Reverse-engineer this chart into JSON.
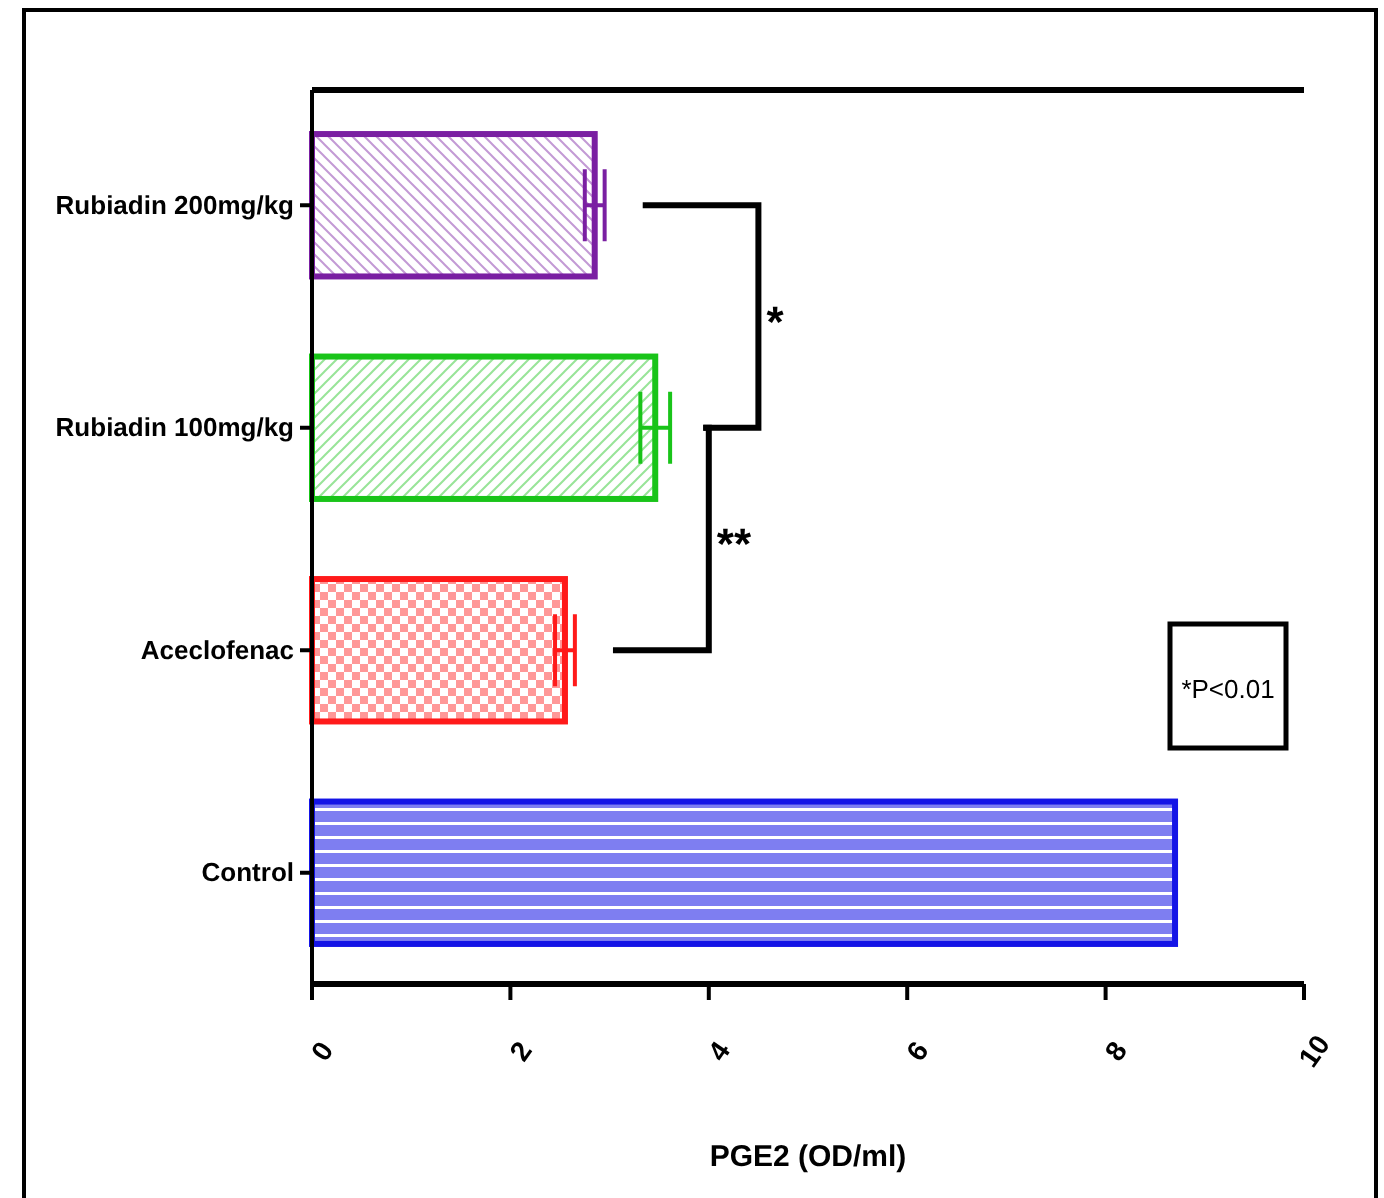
{
  "chart_data": {
    "type": "bar",
    "orientation": "horizontal",
    "xlabel": "PGE2 (OD/ml)",
    "categories": [
      "Rubiadin 200mg/kg",
      "Rubiadin 100mg/kg",
      "Aceclofenac",
      "Control"
    ],
    "values": [
      2.85,
      3.46,
      2.55,
      8.7
    ],
    "errors": [
      0.1,
      0.15,
      0.1,
      null
    ],
    "colors": [
      "#7a1fa2",
      "#19c419",
      "#ff1a1a",
      "#1414e6"
    ],
    "xlim": [
      0,
      10
    ],
    "xticks": [
      0,
      2,
      4,
      6,
      8,
      10
    ],
    "grid": false,
    "annotations": [
      "*",
      "**",
      "*P<0.01"
    ]
  }
}
